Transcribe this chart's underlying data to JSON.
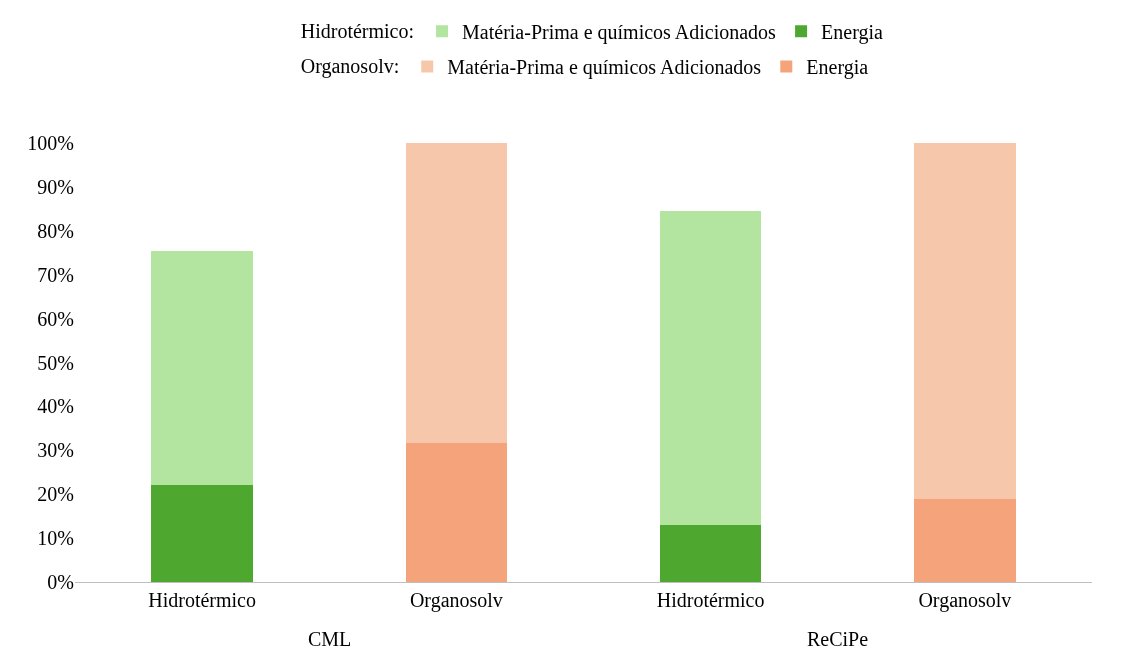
{
  "chart_data": {
    "type": "bar",
    "stacked": true,
    "categories": [
      "Hidrotérmico",
      "Organosolv",
      "Hidrotérmico",
      "Organosolv"
    ],
    "series": [
      {
        "name": "Energia",
        "color": "#4ea72e",
        "values": [
          22,
          null,
          13,
          null
        ]
      },
      {
        "name": "Matéria-Prima e químicos Adicionados",
        "color": "#b3e5a1",
        "values": [
          53.5,
          null,
          71.5,
          null
        ]
      },
      {
        "name": "Energia",
        "color": "#f4a37a",
        "values": [
          null,
          31.7,
          null,
          18.8
        ]
      },
      {
        "name": "Matéria-Prima e químicos Adicionados",
        "color": "#f7c7ab",
        "values": [
          null,
          68.3,
          null,
          81.2
        ]
      }
    ],
    "ylim": [
      0,
      100
    ],
    "yticks": [
      {
        "value": 0,
        "label": "0%"
      },
      {
        "value": 10,
        "label": "10%"
      },
      {
        "value": 20,
        "label": "20%"
      },
      {
        "value": 30,
        "label": "30%"
      },
      {
        "value": 40,
        "label": "40%"
      },
      {
        "value": 50,
        "label": "50%"
      },
      {
        "value": 60,
        "label": "60%"
      },
      {
        "value": 70,
        "label": "70%"
      },
      {
        "value": 80,
        "label": "80%"
      },
      {
        "value": 90,
        "label": "90%"
      },
      {
        "value": 100,
        "label": "100%"
      }
    ],
    "annotations": [
      "Hidrotérmico:",
      "Organosolv:",
      "CML",
      "ReCiPe"
    ],
    "grid": false,
    "legend": "top"
  }
}
